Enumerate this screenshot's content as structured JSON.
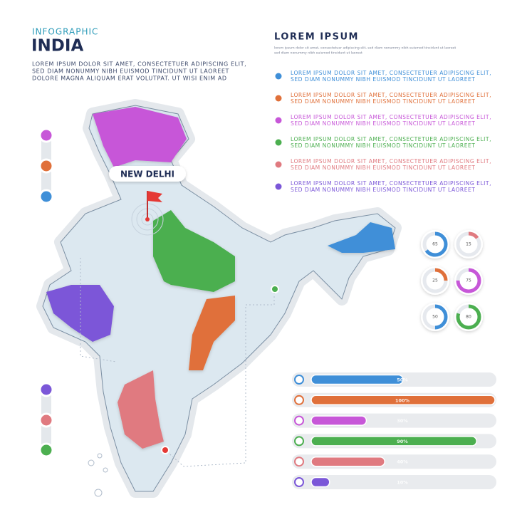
{
  "header": {
    "kicker": "INFOGRAPHIC",
    "title": "INDIA",
    "text": [
      "LOREM IPSUM DOLOR SIT AMET, CONSECTETUER ADIPISCING ELIT,",
      "SED DIAM NONUMMY NIBH EUISMOD TINCIDUNT UT LAOREET",
      "DOLORE MAGNA ALIQUAM ERAT VOLUTPAT. UT WISI ENIM AD"
    ]
  },
  "legend": {
    "title": "LOREM IPSUM",
    "subtitle": [
      "lorem ipsum dolor sit amet, consectetuer adipiscing elit, sed diam nonummy nibh euismod tincidunt ut laoreet",
      "sed diam nonummy nibh euismod tincidunt ut laoreet"
    ],
    "items": [
      {
        "color": "#3f8fd8",
        "lines": [
          "LOREM IPSUM DOLOR SIT AMET, CONSECTETUER ADIPISCING ELIT,",
          "SED DIAM NONUMMY NIBH EUISMOD TINCIDUNT UT LAOREET"
        ]
      },
      {
        "color": "#e0703a",
        "lines": [
          "LOREM IPSUM DOLOR SIT AMET, CONSECTETUER ADIPISCING ELIT,",
          "SED DIAM NONUMMY NIBH EUISMOD TINCIDUNT UT LAOREET"
        ]
      },
      {
        "color": "#c757d8",
        "lines": [
          "LOREM IPSUM DOLOR SIT AMET, CONSECTETUER ADIPISCING ELIT,",
          "SED DIAM NONUMMY NIBH EUISMOD TINCIDUNT UT LAOREET"
        ]
      },
      {
        "color": "#4caf50",
        "lines": [
          "LOREM IPSUM DOLOR SIT AMET, CONSECTETUER ADIPISCING ELIT,",
          "SED DIAM NONUMMY NIBH EUISMOD TINCIDUNT UT LAOREET"
        ]
      },
      {
        "color": "#e07a80",
        "lines": [
          "LOREM IPSUM DOLOR SIT AMET, CONSECTETUER ADIPISCING ELIT,",
          "SED DIAM NONUMMY NIBH EUISMOD TINCIDUNT UT LAOREET"
        ]
      },
      {
        "color": "#7b57d8",
        "lines": [
          "LOREM IPSUM DOLOR SIT AMET, CONSECTETUER ADIPISCING ELIT,",
          "SED DIAM NONUMMY NIBH EUISMOD TINCIDUNT UT LAOREET"
        ]
      }
    ]
  },
  "map": {
    "capital": "NEW DELHI"
  },
  "donuts": {
    "values": [
      65,
      15,
      25,
      75,
      50,
      80
    ],
    "colors": [
      "#3f8fd8",
      "#e07a80",
      "#e0703a",
      "#c757d8",
      "#3f8fd8",
      "#4caf50"
    ]
  },
  "bars": {
    "values": [
      50,
      100,
      30,
      90,
      40,
      10
    ],
    "value_labels": [
      "50%",
      "100%",
      "30%",
      "90%",
      "40%",
      "10%"
    ],
    "colors": [
      "#3f8fd8",
      "#e0703a",
      "#c757d8",
      "#4caf50",
      "#e07a80",
      "#7b57d8"
    ]
  }
}
